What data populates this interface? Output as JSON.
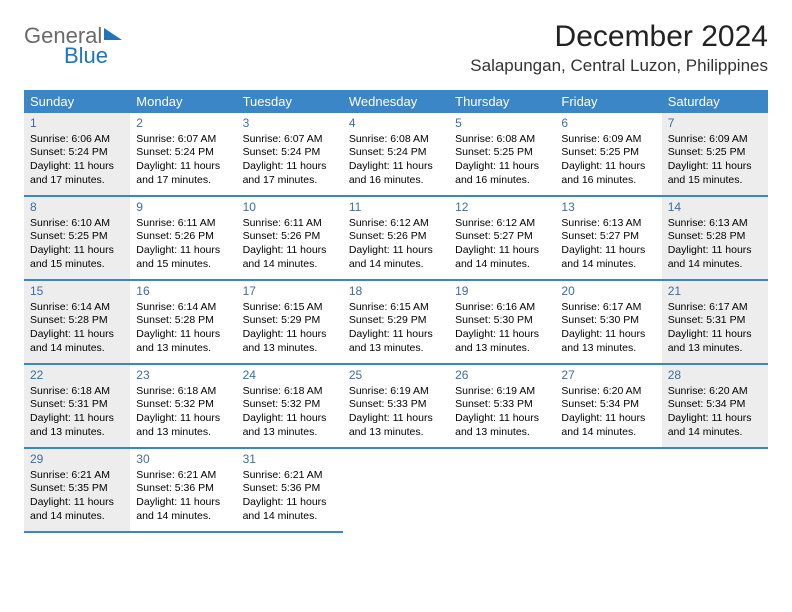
{
  "logo": {
    "word1": "General",
    "word2": "Blue"
  },
  "title": "December 2024",
  "location": "Salapungan, Central Luzon, Philippines",
  "colors": {
    "header_bg": "#3b86c6",
    "header_fg": "#ffffff",
    "weekend_bg": "#ededed",
    "daynum_color": "#3b6fa0",
    "logo_gray": "#6a6a6a",
    "logo_blue": "#2075bc"
  },
  "weekdays": [
    "Sunday",
    "Monday",
    "Tuesday",
    "Wednesday",
    "Thursday",
    "Friday",
    "Saturday"
  ],
  "weeks": [
    [
      {
        "n": "1",
        "sr": "6:06 AM",
        "ss": "5:24 PM",
        "dl": "11 hours and 17 minutes."
      },
      {
        "n": "2",
        "sr": "6:07 AM",
        "ss": "5:24 PM",
        "dl": "11 hours and 17 minutes."
      },
      {
        "n": "3",
        "sr": "6:07 AM",
        "ss": "5:24 PM",
        "dl": "11 hours and 17 minutes."
      },
      {
        "n": "4",
        "sr": "6:08 AM",
        "ss": "5:24 PM",
        "dl": "11 hours and 16 minutes."
      },
      {
        "n": "5",
        "sr": "6:08 AM",
        "ss": "5:25 PM",
        "dl": "11 hours and 16 minutes."
      },
      {
        "n": "6",
        "sr": "6:09 AM",
        "ss": "5:25 PM",
        "dl": "11 hours and 16 minutes."
      },
      {
        "n": "7",
        "sr": "6:09 AM",
        "ss": "5:25 PM",
        "dl": "11 hours and 15 minutes."
      }
    ],
    [
      {
        "n": "8",
        "sr": "6:10 AM",
        "ss": "5:25 PM",
        "dl": "11 hours and 15 minutes."
      },
      {
        "n": "9",
        "sr": "6:11 AM",
        "ss": "5:26 PM",
        "dl": "11 hours and 15 minutes."
      },
      {
        "n": "10",
        "sr": "6:11 AM",
        "ss": "5:26 PM",
        "dl": "11 hours and 14 minutes."
      },
      {
        "n": "11",
        "sr": "6:12 AM",
        "ss": "5:26 PM",
        "dl": "11 hours and 14 minutes."
      },
      {
        "n": "12",
        "sr": "6:12 AM",
        "ss": "5:27 PM",
        "dl": "11 hours and 14 minutes."
      },
      {
        "n": "13",
        "sr": "6:13 AM",
        "ss": "5:27 PM",
        "dl": "11 hours and 14 minutes."
      },
      {
        "n": "14",
        "sr": "6:13 AM",
        "ss": "5:28 PM",
        "dl": "11 hours and 14 minutes."
      }
    ],
    [
      {
        "n": "15",
        "sr": "6:14 AM",
        "ss": "5:28 PM",
        "dl": "11 hours and 14 minutes."
      },
      {
        "n": "16",
        "sr": "6:14 AM",
        "ss": "5:28 PM",
        "dl": "11 hours and 13 minutes."
      },
      {
        "n": "17",
        "sr": "6:15 AM",
        "ss": "5:29 PM",
        "dl": "11 hours and 13 minutes."
      },
      {
        "n": "18",
        "sr": "6:15 AM",
        "ss": "5:29 PM",
        "dl": "11 hours and 13 minutes."
      },
      {
        "n": "19",
        "sr": "6:16 AM",
        "ss": "5:30 PM",
        "dl": "11 hours and 13 minutes."
      },
      {
        "n": "20",
        "sr": "6:17 AM",
        "ss": "5:30 PM",
        "dl": "11 hours and 13 minutes."
      },
      {
        "n": "21",
        "sr": "6:17 AM",
        "ss": "5:31 PM",
        "dl": "11 hours and 13 minutes."
      }
    ],
    [
      {
        "n": "22",
        "sr": "6:18 AM",
        "ss": "5:31 PM",
        "dl": "11 hours and 13 minutes."
      },
      {
        "n": "23",
        "sr": "6:18 AM",
        "ss": "5:32 PM",
        "dl": "11 hours and 13 minutes."
      },
      {
        "n": "24",
        "sr": "6:18 AM",
        "ss": "5:32 PM",
        "dl": "11 hours and 13 minutes."
      },
      {
        "n": "25",
        "sr": "6:19 AM",
        "ss": "5:33 PM",
        "dl": "11 hours and 13 minutes."
      },
      {
        "n": "26",
        "sr": "6:19 AM",
        "ss": "5:33 PM",
        "dl": "11 hours and 13 minutes."
      },
      {
        "n": "27",
        "sr": "6:20 AM",
        "ss": "5:34 PM",
        "dl": "11 hours and 14 minutes."
      },
      {
        "n": "28",
        "sr": "6:20 AM",
        "ss": "5:34 PM",
        "dl": "11 hours and 14 minutes."
      }
    ],
    [
      {
        "n": "29",
        "sr": "6:21 AM",
        "ss": "5:35 PM",
        "dl": "11 hours and 14 minutes."
      },
      {
        "n": "30",
        "sr": "6:21 AM",
        "ss": "5:36 PM",
        "dl": "11 hours and 14 minutes."
      },
      {
        "n": "31",
        "sr": "6:21 AM",
        "ss": "5:36 PM",
        "dl": "11 hours and 14 minutes."
      },
      null,
      null,
      null,
      null
    ]
  ],
  "labels": {
    "sunrise": "Sunrise: ",
    "sunset": "Sunset: ",
    "daylight": "Daylight: "
  }
}
